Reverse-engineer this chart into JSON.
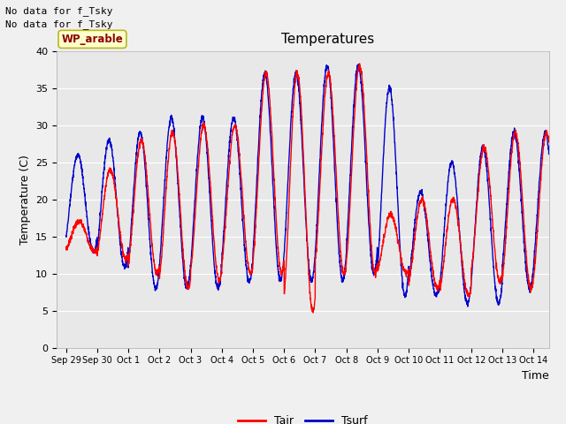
{
  "title": "Temperatures",
  "xlabel": "Time",
  "ylabel": "Temperature (C)",
  "ylim": [
    0,
    40
  ],
  "yticks": [
    0,
    5,
    10,
    15,
    20,
    25,
    30,
    35,
    40
  ],
  "plot_bg_color": "#e8e8e8",
  "fig_bg_color": "#f0f0f0",
  "annotations_top_left": [
    "No data for f_Tsky",
    "No data for f_Tsky"
  ],
  "box_label": "WP_arable",
  "legend_labels": [
    "Tair",
    "Tsurf"
  ],
  "tair_color": "#ff0000",
  "tsurf_color": "#0000cc",
  "xtick_labels": [
    "Sep 29",
    "Sep 30",
    "Oct 1",
    "Oct 2",
    "Oct 3",
    "Oct 4",
    "Oct 5",
    "Oct 6",
    "Oct 7",
    "Oct 8",
    "Oct 9",
    "Oct 10",
    "Oct 11",
    "Oct 12",
    "Oct 13",
    "Oct 14"
  ],
  "xtick_positions": [
    0,
    1,
    2,
    3,
    4,
    5,
    6,
    7,
    8,
    9,
    10,
    11,
    12,
    13,
    14,
    15
  ],
  "tair_daily_max": [
    17,
    24,
    28,
    29,
    30,
    30,
    37,
    37,
    37,
    38,
    18,
    20,
    20,
    27,
    29
  ],
  "tair_daily_min": [
    13,
    12,
    10,
    8,
    9,
    10,
    10,
    5,
    10,
    10,
    10,
    8,
    7,
    9,
    8
  ],
  "tsurf_daily_max": [
    26,
    28,
    29,
    31,
    31,
    31,
    37,
    37,
    38,
    38,
    35,
    21,
    25,
    27,
    29
  ],
  "tsurf_daily_min": [
    13,
    11,
    8,
    8,
    8,
    9,
    9,
    9,
    9,
    10,
    7,
    7,
    6,
    6,
    8
  ]
}
